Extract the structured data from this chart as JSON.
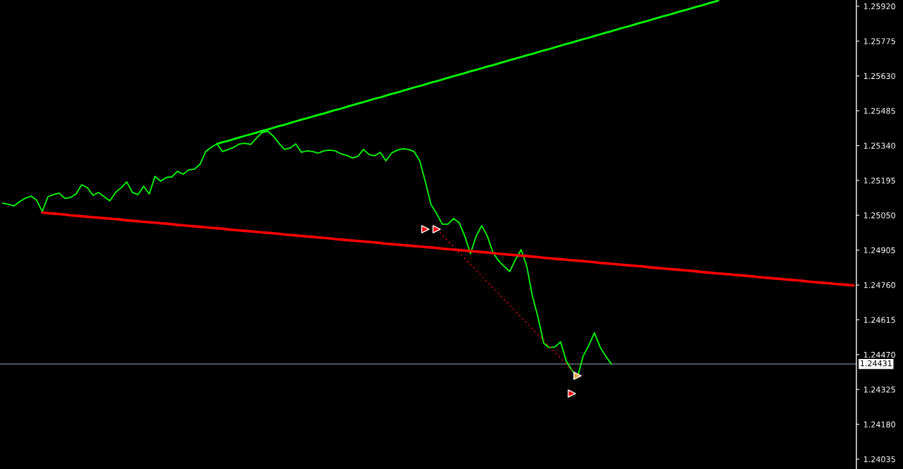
{
  "chart_data": {
    "type": "line",
    "categories": [
      null,
      null,
      null,
      null,
      null,
      null,
      null,
      null,
      null,
      null,
      null,
      null,
      null,
      null,
      null,
      null,
      null,
      null,
      null,
      null,
      null,
      null,
      null,
      null,
      null,
      null,
      null,
      null,
      null,
      null,
      null,
      null,
      null,
      null,
      null,
      null,
      null,
      null,
      null,
      null,
      null,
      null,
      null,
      null,
      null,
      null,
      null,
      null,
      null,
      null,
      null,
      null,
      null,
      null,
      null,
      null,
      null,
      null,
      null,
      null,
      null,
      null,
      null,
      null,
      null,
      null,
      null,
      null,
      null,
      null,
      null,
      null,
      null,
      null,
      null,
      null,
      null,
      null,
      null,
      null,
      null,
      null,
      null,
      null,
      null,
      null,
      null,
      null,
      null,
      null,
      null,
      null,
      null,
      null,
      null,
      null,
      null,
      null,
      null,
      null,
      null,
      null,
      null,
      null,
      null,
      null,
      null,
      null,
      null,
      null,
      null,
      null,
      null,
      null,
      null,
      null,
      null,
      null,
      null,
      null,
      null,
      null,
      null,
      null,
      null,
      null,
      null,
      null,
      null,
      null,
      null,
      null,
      null,
      null,
      null,
      null,
      null,
      null,
      null,
      null,
      null,
      null,
      null,
      null,
      null,
      null,
      null,
      null,
      null,
      null,
      null,
      null
    ],
    "tick_labels": "y",
    "ylim": [
      1.23994,
      1.25946
    ],
    "yticks": [
      {
        "value": 1.2592,
        "label": "1.25920"
      },
      1.25775,
      {
        "value": 1.2563,
        "label": "1.25630"
      },
      1.25485,
      {
        "value": 1.2534,
        "label": "1.25340"
      },
      1.25195,
      {
        "value": 1.2505,
        "label": "1.25050"
      },
      1.24905,
      {
        "value": 1.2476,
        "label": "1.24760"
      },
      1.24615,
      {
        "value": 1.2447,
        "label": "1.24470"
      },
      1.24325,
      {
        "value": 1.2418,
        "label": "1.24180"
      },
      1.24035
    ],
    "ref_lines": [
      {
        "axis": "y",
        "value": 1.24431,
        "label": "1.24431",
        "color": "#778899"
      }
    ],
    "series": [
      {
        "color": "#00ff00",
        "values": [
          1.25101,
          1.25095,
          1.25089,
          1.25107,
          1.25121,
          1.2513,
          1.25113,
          1.25066,
          1.25127,
          1.25136,
          1.25142,
          1.25121,
          1.25124,
          1.25139,
          1.25177,
          1.25165,
          1.25133,
          1.25145,
          1.25127,
          1.2511,
          1.25145,
          1.25165,
          1.25189,
          1.25145,
          1.25136,
          1.25171,
          1.25139,
          1.25212,
          1.25192,
          1.25207,
          1.2521,
          1.25233,
          1.25221,
          1.25239,
          1.25242,
          1.25262,
          1.25315,
          1.25333,
          1.25347,
          1.25315,
          1.25324,
          1.25333,
          1.25347,
          1.2535,
          1.25345,
          1.25371,
          1.25394,
          1.254,
          1.2538,
          1.2535,
          1.25324,
          1.2533,
          1.25347,
          1.25312,
          1.25318,
          1.25315,
          1.25309,
          1.25318,
          1.25321,
          1.25318,
          1.25306,
          1.253,
          1.25289,
          1.25295,
          1.25324,
          1.25303,
          1.25298,
          1.25312,
          1.25277,
          1.25309,
          1.25321,
          1.25327,
          1.25324,
          1.25315,
          1.25277,
          1.25189,
          1.25095,
          1.25057,
          1.25013,
          1.25013,
          1.25036,
          1.25019,
          1.24963,
          1.2489,
          1.24963,
          1.25007,
          1.24963,
          1.24895,
          1.2486,
          1.24837,
          1.24816,
          1.24866,
          1.24907,
          1.24837,
          1.24713,
          1.24625,
          1.24517,
          1.24499,
          1.24502,
          1.24523,
          1.24443,
          1.24405,
          1.24376,
          1.24464,
          1.24508,
          1.24561,
          1.24502,
          1.24464,
          1.24431,
          null,
          null,
          null,
          null,
          null,
          null,
          null,
          null,
          null,
          null,
          null,
          null,
          null,
          null,
          null,
          null,
          null,
          null,
          null,
          null,
          null,
          null,
          null,
          null,
          null,
          null,
          null,
          null,
          null,
          null,
          null,
          null,
          null,
          null,
          null,
          null,
          null,
          null,
          null,
          null,
          null,
          null,
          null
        ]
      },
      {
        "color": "#00ff00",
        "values": [
          null,
          null,
          null,
          null,
          null,
          null,
          null,
          null,
          null,
          null,
          null,
          null,
          null,
          null,
          null,
          null,
          null,
          null,
          null,
          null,
          null,
          null,
          null,
          null,
          null,
          null,
          null,
          null,
          null,
          null,
          null,
          null,
          null,
          null,
          null,
          null,
          null,
          null,
          1.25347,
          1.25354,
          1.2536,
          1.25367,
          1.25374,
          1.25381,
          1.25387,
          1.25394,
          1.25401,
          1.25407,
          1.25414,
          1.25421,
          1.25427,
          1.25434,
          1.25441,
          1.25448,
          1.25454,
          1.25461,
          1.25468,
          1.25474,
          1.25481,
          1.25488,
          1.25494,
          1.25501,
          1.25508,
          1.25515,
          1.25521,
          1.25528,
          1.25535,
          1.25541,
          1.25548,
          1.25555,
          1.25561,
          1.25568,
          1.25575,
          1.25582,
          1.25588,
          1.25595,
          1.25602,
          1.25608,
          1.25615,
          1.25622,
          1.25629,
          1.25635,
          1.25642,
          1.25649,
          1.25655,
          1.25662,
          1.25669,
          1.25675,
          1.25682,
          1.25689,
          1.25696,
          1.25702,
          1.25709,
          1.25716,
          1.25722,
          1.25729,
          1.25736,
          1.25742,
          1.25749,
          1.25756,
          1.25763,
          1.25769,
          1.25776,
          1.25783,
          1.25789,
          1.25796,
          1.25803,
          1.2581,
          1.25816,
          1.25823,
          1.2583,
          1.25836,
          1.25843,
          1.2585,
          1.25856,
          1.25863,
          1.2587,
          1.25877,
          1.25883,
          1.2589,
          1.25897,
          1.25903,
          1.2591,
          1.25917,
          1.25923,
          1.2593,
          1.25937,
          1.25944,
          null,
          null,
          null,
          null,
          null,
          null,
          null,
          null,
          null,
          null,
          null,
          null,
          null,
          null,
          null,
          null,
          null,
          null,
          null,
          null,
          null,
          null,
          null,
          null
        ]
      },
      {
        "color": "#ff0000",
        "values": [
          null,
          null,
          null,
          null,
          null,
          null,
          null,
          1.25061,
          1.25059,
          1.25057,
          1.25055,
          1.25053,
          1.2505,
          1.25048,
          1.25046,
          1.25044,
          1.25042,
          1.2504,
          1.25038,
          1.25036,
          1.25034,
          1.25032,
          1.25029,
          1.25027,
          1.25025,
          1.25023,
          1.25021,
          1.25019,
          1.25017,
          1.25015,
          1.25013,
          1.2501,
          1.25008,
          1.25006,
          1.25004,
          1.25002,
          1.25,
          1.24998,
          1.24996,
          1.24994,
          1.24991,
          1.24989,
          1.24987,
          1.24985,
          1.24983,
          1.24981,
          1.24979,
          1.24977,
          1.24975,
          1.24973,
          1.2497,
          1.24968,
          1.24966,
          1.24964,
          1.24962,
          1.2496,
          1.24958,
          1.24956,
          1.24954,
          1.24951,
          1.24949,
          1.24947,
          1.24945,
          1.24943,
          1.24941,
          1.24939,
          1.24937,
          1.24935,
          1.24932,
          1.2493,
          1.24928,
          1.24926,
          1.24924,
          1.24922,
          1.2492,
          1.24918,
          1.24916,
          1.24914,
          1.24911,
          1.24909,
          1.24907,
          1.24905,
          1.24903,
          1.24901,
          1.24899,
          1.24897,
          1.24895,
          1.24892,
          1.2489,
          1.24888,
          1.24886,
          1.24884,
          1.24882,
          1.2488,
          1.24878,
          1.24876,
          1.24873,
          1.24871,
          1.24869,
          1.24867,
          1.24865,
          1.24863,
          1.24861,
          1.24859,
          1.24857,
          1.24855,
          1.24852,
          1.2485,
          1.24848,
          1.24846,
          1.24844,
          1.24842,
          1.2484,
          1.24838,
          1.24836,
          1.24833,
          1.24831,
          1.24829,
          1.24827,
          1.24825,
          1.24823,
          1.24821,
          1.24819,
          1.24817,
          1.24814,
          1.24812,
          1.2481,
          1.24808,
          1.24806,
          1.24804,
          1.24802,
          1.248,
          1.24798,
          1.24796,
          1.24793,
          1.24791,
          1.24789,
          1.24787,
          1.24785,
          1.24783,
          1.24781,
          1.24779,
          1.24777,
          1.24774,
          1.24772,
          1.2477,
          1.24768,
          1.24766,
          1.24764,
          1.24762,
          1.2476,
          1.24758
        ]
      },
      {
        "color": "#ff0000",
        "line_style": "dotted",
        "values": [
          null,
          null,
          null,
          null,
          null,
          null,
          null,
          null,
          null,
          null,
          null,
          null,
          null,
          null,
          null,
          null,
          null,
          null,
          null,
          null,
          null,
          null,
          null,
          null,
          null,
          null,
          null,
          null,
          null,
          null,
          null,
          null,
          null,
          null,
          null,
          null,
          null,
          null,
          null,
          null,
          null,
          null,
          null,
          null,
          null,
          null,
          null,
          null,
          null,
          null,
          null,
          null,
          null,
          null,
          null,
          null,
          null,
          null,
          null,
          null,
          null,
          null,
          null,
          null,
          null,
          null,
          null,
          null,
          null,
          null,
          null,
          null,
          null,
          null,
          null,
          null,
          null,
          1.24992,
          1.24968,
          1.24943,
          1.24919,
          1.24894,
          1.2487,
          1.24846,
          1.24821,
          1.24797,
          1.24772,
          1.24748,
          1.24724,
          1.24699,
          1.24675,
          1.2465,
          1.24626,
          1.24602,
          1.24577,
          1.24553,
          1.24528,
          1.24504,
          1.2448,
          1.24455,
          1.24431,
          1.24406,
          1.24382,
          null,
          null,
          null,
          null,
          null,
          null,
          null,
          null,
          null,
          null,
          null,
          null,
          null,
          null,
          null,
          null,
          null,
          null,
          null,
          null,
          null,
          null,
          null,
          null,
          null,
          null,
          null,
          null,
          null,
          null,
          null,
          null,
          null,
          null,
          null,
          null,
          null,
          null,
          null,
          null,
          null,
          null,
          null,
          null,
          null,
          null,
          null,
          null,
          null
        ]
      },
      {
        "type": "scatter",
        "color": "#ff0000",
        "marker": "triangle",
        "values": [
          null,
          null,
          null,
          null,
          null,
          null,
          null,
          null,
          null,
          null,
          null,
          null,
          null,
          null,
          null,
          null,
          null,
          null,
          null,
          null,
          null,
          null,
          null,
          null,
          null,
          null,
          null,
          null,
          null,
          null,
          null,
          null,
          null,
          null,
          null,
          null,
          null,
          null,
          null,
          null,
          null,
          null,
          null,
          null,
          null,
          null,
          null,
          null,
          null,
          null,
          null,
          null,
          null,
          null,
          null,
          null,
          null,
          null,
          null,
          null,
          null,
          null,
          null,
          null,
          null,
          null,
          null,
          null,
          null,
          null,
          null,
          null,
          null,
          null,
          null,
          1.24992,
          null,
          1.24992,
          null,
          null,
          null,
          null,
          null,
          null,
          null,
          null,
          null,
          null,
          null,
          null,
          null,
          null,
          null,
          null,
          null,
          null,
          null,
          null,
          null,
          null,
          null,
          1.24308,
          null,
          null,
          null,
          null,
          null,
          null,
          null,
          null,
          null,
          null,
          null,
          null,
          null,
          null,
          null,
          null,
          null,
          null,
          null,
          null,
          null,
          null,
          null,
          null,
          null,
          null,
          null,
          null,
          null,
          null,
          null,
          null,
          null,
          null,
          null,
          null,
          null,
          null,
          null,
          null,
          null,
          null,
          null,
          null,
          null,
          null,
          null,
          null,
          null,
          null
        ]
      },
      {
        "type": "scatter",
        "color": "#e8a33c",
        "marker": "triangle",
        "values": [
          null,
          null,
          null,
          null,
          null,
          null,
          null,
          null,
          null,
          null,
          null,
          null,
          null,
          null,
          null,
          null,
          null,
          null,
          null,
          null,
          null,
          null,
          null,
          null,
          null,
          null,
          null,
          null,
          null,
          null,
          null,
          null,
          null,
          null,
          null,
          null,
          null,
          null,
          null,
          null,
          null,
          null,
          null,
          null,
          null,
          null,
          null,
          null,
          null,
          null,
          null,
          null,
          null,
          null,
          null,
          null,
          null,
          null,
          null,
          null,
          null,
          null,
          null,
          null,
          null,
          null,
          null,
          null,
          null,
          null,
          null,
          null,
          null,
          null,
          null,
          null,
          null,
          null,
          null,
          null,
          null,
          null,
          null,
          null,
          null,
          null,
          null,
          null,
          null,
          null,
          null,
          null,
          null,
          null,
          null,
          null,
          null,
          null,
          null,
          null,
          null,
          null,
          1.24382,
          null,
          null,
          null,
          null,
          null,
          null,
          null,
          null,
          null,
          null,
          null,
          null,
          null,
          null,
          null,
          null,
          null,
          null,
          null,
          null,
          null,
          null,
          null,
          null,
          null,
          null,
          null,
          null,
          null,
          null,
          null,
          null,
          null,
          null,
          null,
          null,
          null,
          null,
          null,
          null,
          null,
          null,
          null,
          null,
          null,
          null,
          null,
          null,
          null
        ]
      }
    ]
  }
}
